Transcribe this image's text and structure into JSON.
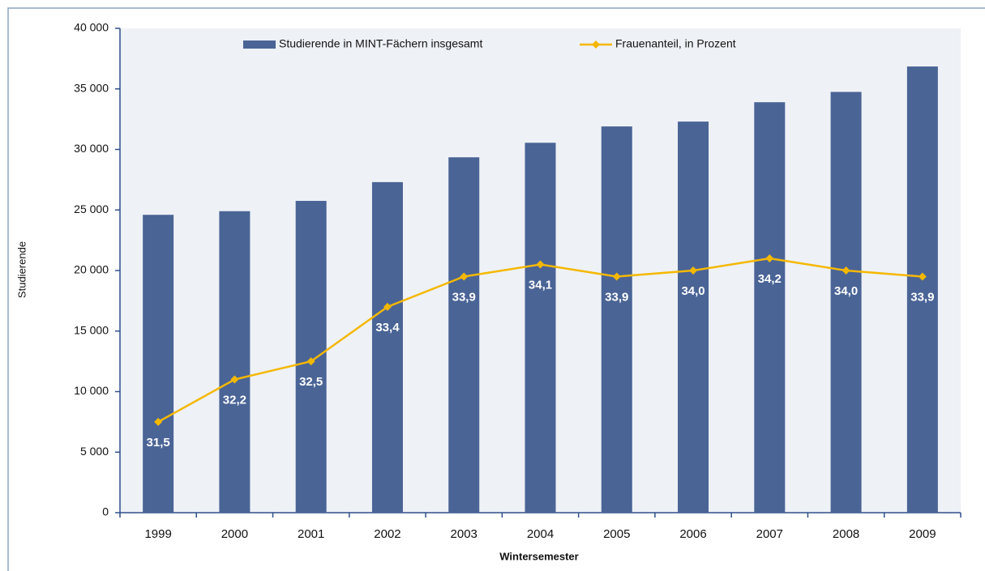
{
  "chart_data": {
    "type": "bar-line",
    "x_label": "Wintersemester",
    "y_label": "Studierende",
    "categories": [
      "1999",
      "2000",
      "2001",
      "2002",
      "2003",
      "2004",
      "2005",
      "2006",
      "2007",
      "2008",
      "2009"
    ],
    "series": [
      {
        "name": "Studierende in MINT-Fächern insgesamt",
        "type": "bar",
        "color": "#4a6496",
        "values": [
          24600,
          24900,
          25750,
          27300,
          29350,
          30550,
          31900,
          32300,
          33900,
          34750,
          36850
        ]
      },
      {
        "name": "Frauenanteil, in Prozent",
        "type": "line",
        "color": "#f5b800",
        "axis": "y2",
        "values": [
          31.5,
          32.2,
          32.5,
          33.4,
          33.9,
          34.1,
          33.9,
          34.0,
          34.2,
          34.0,
          33.9
        ],
        "value_labels": [
          "31,5",
          "32,2",
          "32,5",
          "33,4",
          "33,9",
          "34,1",
          "33,9",
          "34,0",
          "34,2",
          "34,0",
          "33,9"
        ]
      }
    ],
    "ylim": [
      0,
      40000
    ],
    "yticks": [
      0,
      {
        "value": 5000,
        "label": "5 000"
      },
      {
        "value": 10000,
        "label": "10 000"
      },
      {
        "value": 15000,
        "label": "15 000"
      },
      {
        "value": 20000,
        "label": "20 000"
      },
      {
        "value": 25000,
        "label": "25 000"
      },
      {
        "value": 30000,
        "label": "30 000"
      },
      {
        "value": 35000,
        "label": "35 000"
      },
      {
        "value": 40000,
        "label": "40 000"
      }
    ],
    "y2lim": [
      30,
      38
    ],
    "legend": "top"
  }
}
